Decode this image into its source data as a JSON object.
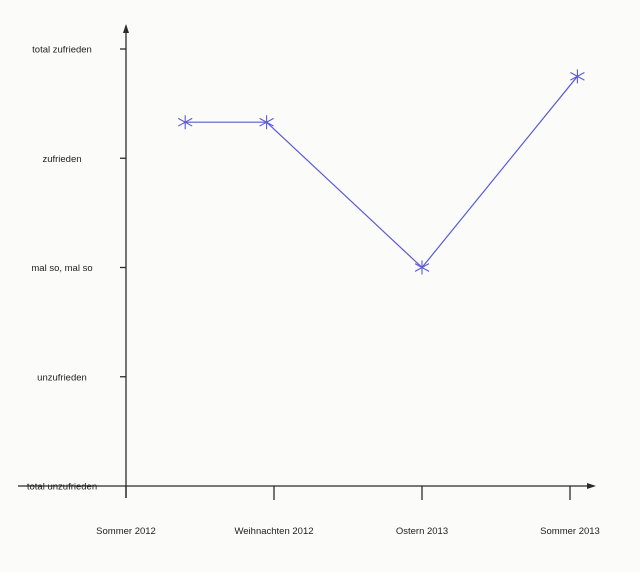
{
  "chart_data": {
    "type": "line",
    "title": "",
    "xlabel": "",
    "ylabel": "",
    "categories": [
      "Sommer 2012",
      "Weihnachten 2012",
      "Ostern 2013",
      "Sommer 2013"
    ],
    "y_levels": [
      "total unzufrieden",
      "unzufrieden",
      "mal so, mal so",
      "zufrieden",
      "total zufrieden"
    ],
    "ylim": [
      0,
      4
    ],
    "grid": false,
    "legend": "none",
    "series": [
      {
        "color": "#5a5ad8",
        "marker": "asterisk",
        "points": [
          {
            "x": 0.4,
            "y": 3.33
          },
          {
            "x": 0.95,
            "y": 3.33
          },
          {
            "x": 2.0,
            "y": 2.0
          },
          {
            "x": 3.05,
            "y": 3.75
          }
        ]
      }
    ],
    "axis_color": "#2b2b2b"
  }
}
